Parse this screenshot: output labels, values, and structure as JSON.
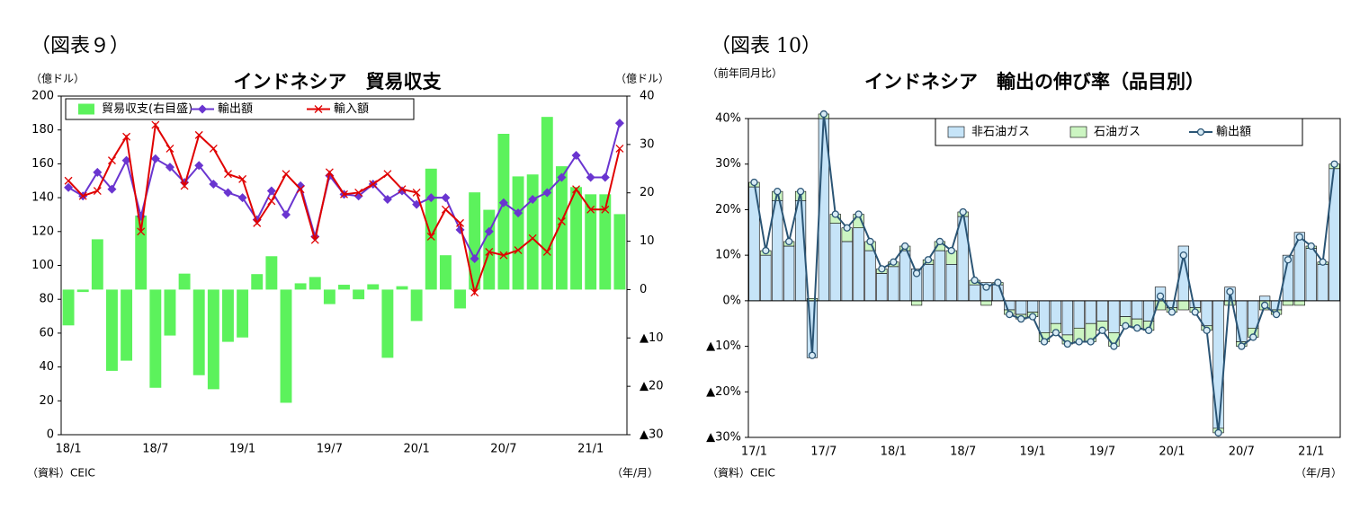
{
  "chart_data": [
    {
      "type": "bar_line",
      "figure_label": "（図表９）",
      "title": "インドネシア　貿易収支",
      "y_label": "（億ドル）",
      "y2_label": "（億ドル）",
      "x_label": "（年/月）",
      "source": "（資料）CEIC",
      "legend": "top-left",
      "categories": [
        "18/1",
        null,
        null,
        null,
        null,
        null,
        "18/7",
        null,
        null,
        null,
        null,
        null,
        "19/1",
        null,
        null,
        null,
        null,
        null,
        "19/7",
        null,
        null,
        null,
        null,
        null,
        "20/1",
        null,
        null,
        null,
        null,
        null,
        "20/7",
        null,
        null,
        null,
        null,
        null,
        "21/1",
        null,
        null
      ],
      "ylim": [
        0,
        200
      ],
      "yticks": [
        0,
        20,
        40,
        60,
        80,
        100,
        120,
        140,
        160,
        180,
        200
      ],
      "y2lim": [
        -30,
        40
      ],
      "y2ticks": [
        40,
        30,
        20,
        10,
        0,
        {
          "value": -10,
          "label": "▲10"
        },
        {
          "value": -20,
          "label": "▲20"
        },
        {
          "value": -30,
          "label": "▲30"
        }
      ],
      "series": [
        {
          "name": "貿易収支(右目盛)",
          "kind": "bar",
          "axis": "y2",
          "color": "#5cf25c",
          "values": [
            -7.4,
            -0.5,
            10.4,
            -16.8,
            -14.7,
            15.3,
            -20.3,
            -9.5,
            3.3,
            -17.7,
            -20.6,
            -10.8,
            -9.9,
            3.2,
            6.9,
            -23.4,
            1.3,
            2.6,
            -3,
            1,
            -2,
            1.1,
            -14.1,
            0.7,
            -6.5,
            25,
            7.1,
            -3.9,
            20.1,
            16.5,
            32.2,
            23.4,
            23.8,
            35.7,
            25.5,
            21.2,
            19.7,
            19.7,
            15.6
          ]
        },
        {
          "name": "輸出額",
          "kind": "line",
          "marker": "diamond",
          "color": "#6a35d0",
          "values": [
            146,
            141,
            155,
            145,
            162,
            129,
            163,
            158,
            149,
            159,
            148,
            143,
            140,
            127,
            144,
            130,
            147,
            117,
            153,
            142,
            141,
            148,
            139,
            144,
            136,
            140,
            140,
            121,
            104,
            120,
            137,
            131,
            139,
            143,
            152,
            165,
            152,
            152,
            184
          ]
        },
        {
          "name": "輸入額",
          "kind": "line",
          "marker": "x",
          "color": "#e00000",
          "values": [
            150,
            141,
            144,
            162,
            176,
            120,
            183,
            169,
            147,
            177,
            169,
            154,
            151,
            125,
            138,
            154,
            145,
            115,
            155,
            142,
            143,
            148,
            154,
            145,
            143,
            117,
            133,
            125,
            84,
            108,
            106,
            109,
            116,
            108,
            126,
            145,
            133,
            133,
            169
          ]
        }
      ]
    },
    {
      "type": "stacked_bar_line",
      "figure_label": "（図表 10）",
      "title": "インドネシア　輸出の伸び率（品目別）",
      "y_label": "（前年同月比）",
      "x_label": "（年/月）",
      "source": "（資料）CEIC",
      "legend": "top-right",
      "categories": [
        "17/1",
        null,
        null,
        null,
        null,
        null,
        "17/7",
        null,
        null,
        null,
        null,
        null,
        "18/1",
        null,
        null,
        null,
        null,
        null,
        "18/7",
        null,
        null,
        null,
        null,
        null,
        "19/1",
        null,
        null,
        null,
        null,
        null,
        "19/7",
        null,
        null,
        null,
        null,
        null,
        "20/1",
        null,
        null,
        null,
        null,
        null,
        "20/7",
        null,
        null,
        null,
        null,
        null,
        "21/1",
        null,
        null
      ],
      "ylim": [
        -30,
        40
      ],
      "yticks": [
        {
          "value": 40,
          "label": "40%"
        },
        {
          "value": 30,
          "label": "30%"
        },
        {
          "value": 20,
          "label": "20%"
        },
        {
          "value": 10,
          "label": "10%"
        },
        {
          "value": 0,
          "label": "0%"
        },
        {
          "value": -10,
          "label": "▲10%"
        },
        {
          "value": -20,
          "label": "▲20%"
        },
        {
          "value": -30,
          "label": "▲30%"
        }
      ],
      "series": [
        {
          "name": "非石油ガス",
          "kind": "bar",
          "color": "#c6e4f8",
          "values": [
            25,
            10,
            22,
            12,
            22,
            -12.5,
            40,
            17,
            13,
            16,
            11,
            6,
            7.5,
            11,
            7,
            8,
            11,
            8,
            18.5,
            3.5,
            4,
            3.5,
            -2,
            -3,
            -2.5,
            -7,
            -5,
            -7.5,
            -6,
            -5,
            -4.5,
            -7,
            -3.5,
            -4,
            -4.5,
            3,
            -1.5,
            12,
            -1.5,
            -5.5,
            -28,
            3,
            -9,
            -6,
            1,
            -2,
            10,
            15,
            11.5,
            8,
            29
          ]
        },
        {
          "name": "石油ガス",
          "kind": "bar",
          "color": "#ccf5c2",
          "values": [
            1,
            1,
            2,
            1,
            2,
            0.5,
            1,
            2,
            3,
            3,
            2,
            1,
            1,
            1,
            -1,
            1,
            2,
            3,
            1,
            1,
            -1,
            0.5,
            -1,
            -1,
            -1,
            -2,
            -2,
            -2,
            -3,
            -4,
            -2,
            -3,
            -2,
            -2,
            -2,
            -2,
            -1,
            -2,
            -1,
            -1,
            -1,
            -1,
            -1,
            -2,
            -2,
            -1,
            -1,
            -1,
            0.5,
            0.5,
            1
          ]
        },
        {
          "name": "輸出額",
          "kind": "line",
          "marker": "circle",
          "color": "#2b5575",
          "values": [
            26,
            11,
            24,
            13,
            24,
            -12,
            41,
            19,
            16,
            19,
            13,
            7,
            8.5,
            12,
            6,
            9,
            13,
            11,
            19.5,
            4.5,
            3,
            4,
            -3,
            -4,
            -3.5,
            -9,
            -7,
            -9.5,
            -9,
            -9,
            -6.5,
            -10,
            -5.5,
            -6,
            -6.5,
            1,
            -2.5,
            10,
            -2.5,
            -6.5,
            -29,
            2,
            -10,
            -8,
            -1,
            -3,
            9,
            14,
            12,
            8.5,
            30
          ]
        }
      ]
    }
  ]
}
